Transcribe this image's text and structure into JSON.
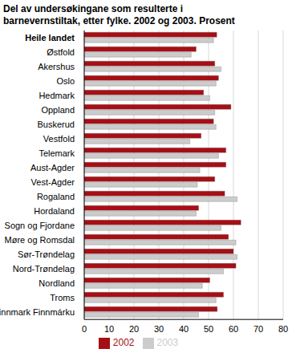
{
  "chart_data": {
    "type": "bar",
    "orientation": "horizontal",
    "title": "Del av undersøkingane som resulterte i barnevernstiltak, etter fylke. 2002 og 2003. Prosent",
    "categories": [
      "Heile landet",
      "Østfold",
      "Akershus",
      "Oslo",
      "Hedmark",
      "Oppland",
      "Buskerud",
      "Vestfold",
      "Telemark",
      "Aust-Agder",
      "Vest-Agder",
      "Rogaland",
      "Hordaland",
      "Sogn og Fjordane",
      "Møre og Romsdal",
      "Sør-Trøndelag",
      "Nord-Trøndelag",
      "Nordland",
      "Troms",
      "Finnmark Finnmárku"
    ],
    "series": [
      {
        "name": "2002",
        "color": "#a50f15",
        "values": [
          53.3,
          45,
          52.5,
          54,
          48,
          59,
          52,
          47,
          57,
          57,
          52.5,
          56.5,
          46,
          63,
          58,
          60,
          61,
          50.5,
          56,
          53.5
        ]
      },
      {
        "name": "2003",
        "color": "#cccccc",
        "values": [
          52,
          43,
          55,
          53,
          50.5,
          52.5,
          53,
          42.5,
          54,
          46.5,
          45.5,
          61.5,
          45,
          55,
          61,
          61.5,
          56,
          47.5,
          53,
          46
        ]
      }
    ],
    "xlim": [
      0,
      80
    ],
    "xticks": [
      0,
      10,
      20,
      30,
      40,
      50,
      60,
      70,
      80
    ],
    "grid": true,
    "legend": "bottom"
  }
}
